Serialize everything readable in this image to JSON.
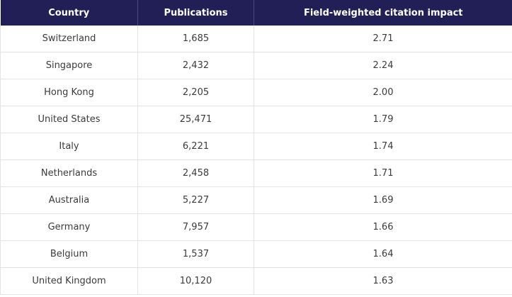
{
  "table": {
    "headers": [
      "Country",
      "Publications",
      "Field-weighted citation impact"
    ],
    "rows": [
      [
        "Switzerland",
        "1,685",
        "2.71"
      ],
      [
        "Singapore",
        "2,432",
        "2.24"
      ],
      [
        "Hong Kong",
        "2,205",
        "2.00"
      ],
      [
        "United States",
        "25,471",
        "1.79"
      ],
      [
        "Italy",
        "6,221",
        "1.74"
      ],
      [
        "Netherlands",
        "2,458",
        "1.71"
      ],
      [
        "Australia",
        "5,227",
        "1.69"
      ],
      [
        "Germany",
        "7,957",
        "1.66"
      ],
      [
        "Belgium",
        "1,537",
        "1.64"
      ],
      [
        "United Kingdom",
        "10,120",
        "1.63"
      ]
    ]
  },
  "colors": {
    "header_bg": "#221f56",
    "header_text": "#ffffff",
    "cell_text": "#3b3b3b",
    "grid": "#e3e3e3"
  }
}
